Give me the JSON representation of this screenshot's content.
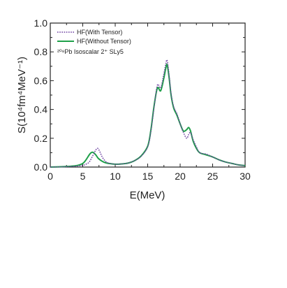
{
  "chart_data": {
    "type": "line",
    "xlabel": "E(MeV)",
    "ylabel": "S(10⁴fm⁴MeV⁻¹)",
    "xlim": [
      0,
      30
    ],
    "ylim": [
      0,
      1.0
    ],
    "xticks": [
      "0",
      "5",
      "10",
      "15",
      "20",
      "25",
      "30"
    ],
    "yticks": [
      "0.0",
      "0.2",
      "0.4",
      "0.6",
      "0.8",
      "1.0"
    ],
    "grid": false,
    "legend_position": "top-left",
    "annotation": "²⁰⁸Pb  Isoscalar 2⁺    SLy5",
    "series": [
      {
        "name": "HF(With Tensor)",
        "color": "#6b3fa0",
        "style": "dotted",
        "x": [
          0,
          2,
          4,
          5,
          5.5,
          6,
          6.5,
          7,
          7.3,
          7.6,
          8,
          8.5,
          9,
          10,
          11,
          12,
          13,
          14,
          15,
          15.5,
          16,
          16.5,
          17,
          17.5,
          17.8,
          18,
          18.3,
          18.6,
          19,
          19.5,
          20,
          20.5,
          21,
          21.3,
          21.6,
          22,
          22.5,
          23,
          24,
          25,
          26,
          27,
          28,
          29,
          30
        ],
        "y": [
          0.0,
          0.002,
          0.006,
          0.012,
          0.02,
          0.035,
          0.075,
          0.118,
          0.13,
          0.11,
          0.07,
          0.04,
          0.028,
          0.02,
          0.022,
          0.028,
          0.045,
          0.075,
          0.14,
          0.25,
          0.42,
          0.57,
          0.55,
          0.65,
          0.72,
          0.74,
          0.64,
          0.51,
          0.42,
          0.37,
          0.3,
          0.24,
          0.2,
          0.225,
          0.24,
          0.19,
          0.14,
          0.1,
          0.09,
          0.07,
          0.05,
          0.035,
          0.025,
          0.015,
          0.01
        ]
      },
      {
        "name": "HF(Without Tensor)",
        "color": "#1fa04a",
        "style": "solid",
        "x": [
          0,
          2,
          4,
          5,
          5.5,
          6,
          6.3,
          6.6,
          7,
          7.4,
          8,
          8.5,
          9,
          10,
          11,
          12,
          13,
          14,
          15,
          15.5,
          16,
          16.5,
          17,
          17.5,
          17.8,
          18,
          18.3,
          18.6,
          19,
          19.5,
          20,
          20.5,
          21,
          21.3,
          21.6,
          22,
          22.5,
          23,
          24,
          25,
          26,
          27,
          28,
          29,
          30
        ],
        "y": [
          0.0,
          0.003,
          0.01,
          0.025,
          0.05,
          0.085,
          0.1,
          0.102,
          0.085,
          0.06,
          0.04,
          0.03,
          0.025,
          0.02,
          0.022,
          0.028,
          0.045,
          0.078,
          0.145,
          0.26,
          0.43,
          0.55,
          0.53,
          0.62,
          0.69,
          0.71,
          0.62,
          0.5,
          0.41,
          0.36,
          0.3,
          0.25,
          0.26,
          0.275,
          0.25,
          0.18,
          0.13,
          0.1,
          0.085,
          0.07,
          0.05,
          0.035,
          0.025,
          0.015,
          0.01
        ]
      }
    ]
  }
}
